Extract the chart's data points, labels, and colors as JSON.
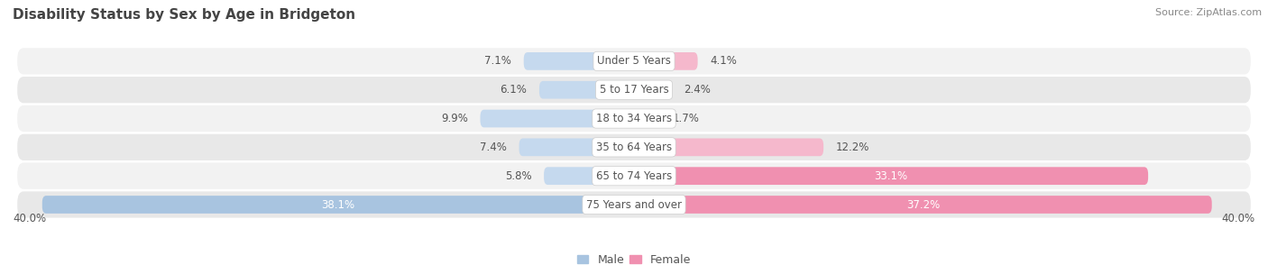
{
  "title": "Disability Status by Sex by Age in Bridgeton",
  "source": "Source: ZipAtlas.com",
  "categories": [
    "Under 5 Years",
    "5 to 17 Years",
    "18 to 34 Years",
    "35 to 64 Years",
    "65 to 74 Years",
    "75 Years and over"
  ],
  "male_values": [
    7.1,
    6.1,
    9.9,
    7.4,
    5.8,
    38.1
  ],
  "female_values": [
    4.1,
    2.4,
    1.7,
    12.2,
    33.1,
    37.2
  ],
  "male_color": "#a8c4e0",
  "female_color": "#f090b0",
  "male_color_light": "#c5d9ee",
  "female_color_light": "#f5b8cc",
  "male_label": "Male",
  "female_label": "Female",
  "axis_max": 40.0,
  "axis_label_left": "40.0%",
  "axis_label_right": "40.0%",
  "row_colors_light": [
    "#f2f2f2",
    "#e8e8e8",
    "#f2f2f2",
    "#e8e8e8",
    "#f2f2f2",
    "#e8e8e8"
  ],
  "title_color": "#444444",
  "source_color": "#888888",
  "bar_text_color_dark": "#555555",
  "bar_text_color_light": "#ffffff",
  "center_label_color": "#555555",
  "figsize": [
    14.06,
    3.04
  ],
  "dpi": 100
}
